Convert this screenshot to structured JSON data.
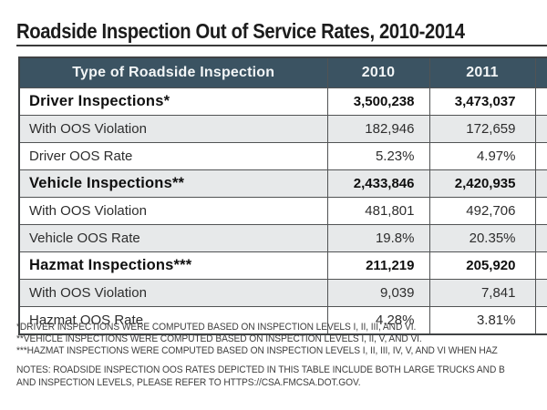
{
  "title": "Roadside Inspection Out of Service Rates, 2010-2014",
  "chart_data": {
    "type": "table",
    "title": "Roadside Inspection Out of Service Rates, 2010-2014",
    "columns": [
      "Type of Roadside Inspection",
      "2010",
      "2011"
    ],
    "rows": [
      {
        "label": "Driver Inspections*",
        "section": true,
        "values": [
          "3,500,238",
          "3,473,037"
        ]
      },
      {
        "label": "With OOS Violation",
        "section": false,
        "values": [
          "182,946",
          "172,659"
        ]
      },
      {
        "label": "Driver OOS Rate",
        "section": false,
        "values": [
          "5.23%",
          "4.97%"
        ]
      },
      {
        "label": "Vehicle Inspections**",
        "section": true,
        "values": [
          "2,433,846",
          "2,420,935"
        ]
      },
      {
        "label": "With OOS Violation",
        "section": false,
        "values": [
          "481,801",
          "492,706"
        ]
      },
      {
        "label": "Vehicle OOS Rate",
        "section": false,
        "values": [
          "19.8%",
          "20.35%"
        ]
      },
      {
        "label": "Hazmat Inspections***",
        "section": true,
        "values": [
          "211,219",
          "205,920"
        ]
      },
      {
        "label": "With OOS Violation",
        "section": false,
        "values": [
          "9,039",
          "7,841"
        ]
      },
      {
        "label": "Hazmat OOS Rate",
        "section": false,
        "values": [
          "4.28%",
          "3.81%"
        ]
      }
    ]
  },
  "footnotes": [
    "*DRIVER INSPECTIONS WERE COMPUTED BASED ON INSPECTION LEVELS I, II, III, AND VI.",
    "**VEHICLE INSPECTIONS WERE COMPUTED BASED ON INSPECTION LEVELS I, II, V, AND VI.",
    "***HAZMAT INSPECTIONS WERE COMPUTED BASED ON INSPECTION LEVELS I, II, III, IV, V, AND VI WHEN HAZ"
  ],
  "notes": [
    "NOTES: ROADSIDE INSPECTION OOS RATES DEPICTED IN THIS TABLE INCLUDE BOTH LARGE TRUCKS AND B",
    "AND INSPECTION LEVELS, PLEASE REFER TO HTTPS://CSA.FMCSA.DOT.GOV."
  ],
  "colors": {
    "header_bg": "#3b5362",
    "header_text": "#f2f5f6",
    "row_alt_bg": "#e7e9ea",
    "border": "#515354",
    "title_text": "#1c1c1c"
  }
}
